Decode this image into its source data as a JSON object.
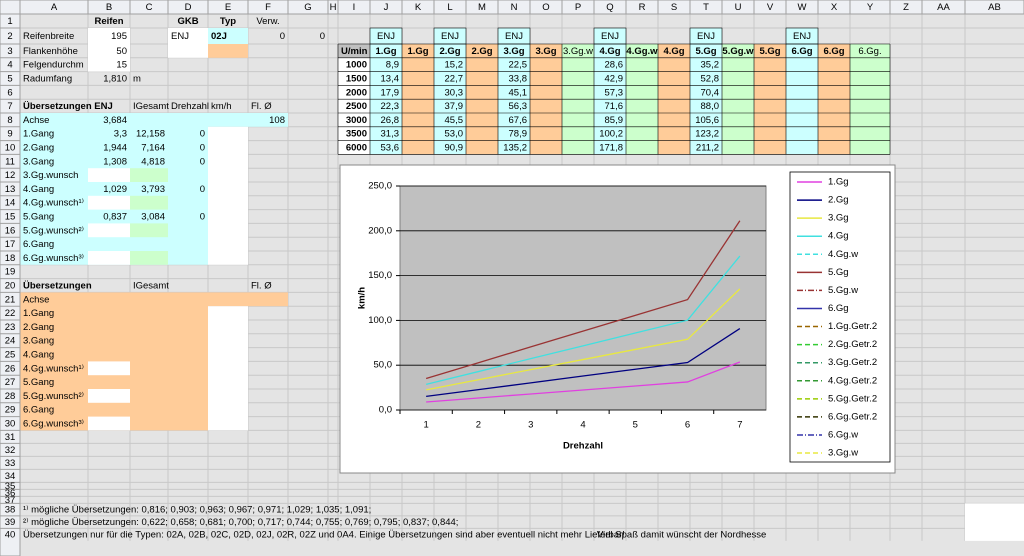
{
  "columns": [
    "A",
    "B",
    "C",
    "D",
    "E",
    "F",
    "G",
    "H",
    "I",
    "J",
    "K",
    "L",
    "M",
    "N",
    "O",
    "P",
    "Q",
    "R",
    "S",
    "T",
    "U",
    "V",
    "W",
    "X",
    "Y",
    "Z",
    "AA",
    "AB"
  ],
  "row_numbers": [
    1,
    2,
    3,
    4,
    5,
    6,
    7,
    8,
    9,
    10,
    11,
    12,
    13,
    14,
    15,
    16,
    17,
    18,
    19,
    20,
    21,
    22,
    23,
    24,
    25,
    26,
    27,
    28,
    29,
    30,
    31,
    32,
    33,
    34,
    35,
    36,
    37,
    38,
    39,
    40
  ],
  "sheet": {
    "1": {
      "B": "Reifen",
      "D": "GKB",
      "E": "Typ",
      "F": "Verw."
    },
    "2": {
      "A": "Reifenbreite",
      "B": "195",
      "D": "ENJ",
      "E": "02J",
      "F": "0",
      "G": "0",
      "J": "ENJ",
      "L": "ENJ",
      "N": "ENJ",
      "Q": "ENJ",
      "T": "ENJ",
      "W": "ENJ"
    },
    "3": {
      "A": "Flankenhöhe",
      "B": "50",
      "I": "U/min",
      "J": "1.Gg",
      "K": "1.Gg",
      "L": "2.Gg",
      "M": "2.Gg",
      "N": "3.Gg",
      "O": "3.Gg",
      "P": "3.Gg.w",
      "Q": "4.Gg",
      "R": "4.Gg.w",
      "S": "4.Gg",
      "T": "5.Gg",
      "U": "5.Gg.w",
      "V": "5.Gg",
      "W": "6.Gg",
      "X": "6.Gg",
      "Y": "6.Gg."
    },
    "4": {
      "A": "Felgendurchm",
      "B": "15",
      "I": "1000",
      "J": "8,9",
      "L": "15,2",
      "N": "22,5",
      "Q": "28,6",
      "T": "35,2"
    },
    "5": {
      "A": "Radumfang",
      "B": "1,810",
      "C": "m",
      "I": "1500",
      "J": "13,4",
      "L": "22,7",
      "N": "33,8",
      "Q": "42,9",
      "T": "52,8"
    },
    "6": {
      "I": "2000",
      "J": "17,9",
      "L": "30,3",
      "N": "45,1",
      "Q": "57,3",
      "T": "70,4"
    },
    "7": {
      "A": "Übersetzungen ENJ",
      "C": "IGesamt",
      "D": "Drehzahl",
      "E": "km/h",
      "F": "Fl. Ø",
      "I": "2500",
      "J": "22,3",
      "L": "37,9",
      "N": "56,3",
      "Q": "71,6",
      "T": "88,0"
    },
    "8": {
      "A": "Achse",
      "B": "3,684",
      "F": "108",
      "I": "3000",
      "J": "26,8",
      "L": "45,5",
      "N": "67,6",
      "Q": "85,9",
      "T": "105,6"
    },
    "9": {
      "A": "1.Gang",
      "B": "3,3",
      "C": "12,158",
      "D": "0",
      "I": "3500",
      "J": "31,3",
      "L": "53,0",
      "N": "78,9",
      "Q": "100,2",
      "T": "123,2"
    },
    "10": {
      "A": "2.Gang",
      "B": "1,944",
      "C": "7,164",
      "D": "0",
      "I": "6000",
      "J": "53,6",
      "L": "90,9",
      "N": "135,2",
      "Q": "171,8",
      "T": "211,2"
    },
    "11": {
      "A": "3.Gang",
      "B": "1,308",
      "C": "4,818",
      "D": "0"
    },
    "12": {
      "A": "3.Gg.wunsch"
    },
    "13": {
      "A": "4.Gang",
      "B": "1,029",
      "C": "3,793",
      "D": "0"
    },
    "14": {
      "A": "4.Gg.wunsch¹⁾"
    },
    "15": {
      "A": "5.Gang",
      "B": "0,837",
      "C": "3,084",
      "D": "0"
    },
    "16": {
      "A": "5.Gg.wunsch²⁾"
    },
    "17": {
      "A": "6.Gang"
    },
    "18": {
      "A": "6.Gg.wunsch³⁾"
    },
    "20": {
      "A": "Übersetzungen",
      "C": "IGesamt",
      "F": "Fl. Ø"
    },
    "21": {
      "A": "Achse"
    },
    "22": {
      "A": "1.Gang"
    },
    "23": {
      "A": "2.Gang"
    },
    "24": {
      "A": "3.Gang"
    },
    "25": {
      "A": "4.Gang"
    },
    "26": {
      "A": "4.Gg.wunsch¹⁾"
    },
    "27": {
      "A": "5.Gang"
    },
    "28": {
      "A": "5.Gg.wunsch²⁾"
    },
    "29": {
      "A": "6.Gang"
    },
    "30": {
      "A": "6.Gg.wunsch³⁾"
    },
    "38": {
      "A": "¹⁾ mögliche Übersetzungen: 0,816; 0,903; 0,963; 0,967; 0,971; 1,029; 1,035; 1,091;"
    },
    "39": {
      "A": "²⁾ mögliche Übersetzungen: 0,622; 0,658; 0,681; 0,700; 0,717; 0,744; 0,755; 0,769; 0,795; 0,837; 0,844;"
    },
    "40": {
      "A": "Übersetzungen nur für die Typen: 02A, 02B, 02C, 02D, 02J, 02R, 02Z und 0A4. Einige Übersetzungen sind aber eventuell nicht mehr Lieferbar!",
      "Q": "Viel Spaß damit wünscht der Nordhesse"
    }
  },
  "chart_data": {
    "type": "line",
    "xlabel": "Drehzahl",
    "ylabel": "km/h",
    "categories": [
      1,
      2,
      3,
      4,
      5,
      6,
      7
    ],
    "ylim": [
      0,
      250
    ],
    "yticks": [
      {
        "value": 0,
        "label": "0,0"
      },
      {
        "value": 50,
        "label": "50,0"
      },
      {
        "value": 100,
        "label": "100,0"
      },
      {
        "value": 150,
        "label": "150,0"
      },
      {
        "value": 200,
        "label": "200,0"
      },
      {
        "value": 250,
        "label": "250,0"
      }
    ],
    "grid": true,
    "legend": "right",
    "series": [
      {
        "name": "1.Gg",
        "color": "#e040e0",
        "values": [
          8.9,
          13.4,
          17.9,
          22.3,
          26.8,
          31.3,
          53.6
        ]
      },
      {
        "name": "2.Gg",
        "color": "#000080",
        "values": [
          15.2,
          22.7,
          30.3,
          37.9,
          45.5,
          53.0,
          90.9
        ]
      },
      {
        "name": "3.Gg",
        "color": "#e8e840",
        "values": [
          22.5,
          33.8,
          45.1,
          56.3,
          67.6,
          78.9,
          135.2
        ]
      },
      {
        "name": "4.Gg",
        "color": "#40e0e0",
        "values": [
          28.6,
          42.9,
          57.3,
          71.6,
          85.9,
          100.2,
          171.8
        ]
      },
      {
        "name": "4.Gg.w",
        "color": "#40e0e0",
        "dash": "dash",
        "values": [
          null,
          null,
          null,
          null,
          null,
          null,
          null
        ]
      },
      {
        "name": "5.Gg",
        "color": "#993333",
        "values": [
          35.2,
          52.8,
          70.4,
          88.0,
          105.6,
          123.2,
          211.2
        ]
      },
      {
        "name": "5.Gg.w",
        "color": "#993333",
        "dash": "dashdot",
        "values": [
          null,
          null,
          null,
          null,
          null,
          null,
          null
        ]
      },
      {
        "name": "6.Gg",
        "color": "#3333aa",
        "values": [
          null,
          null,
          null,
          null,
          null,
          null,
          null
        ]
      },
      {
        "name": "1.Gg.Getr.2",
        "color": "#996600",
        "dash": "dash",
        "values": [
          null,
          null,
          null,
          null,
          null,
          null,
          null
        ]
      },
      {
        "name": "2.Gg.Getr.2",
        "color": "#33cc33",
        "dash": "dash",
        "values": [
          null,
          null,
          null,
          null,
          null,
          null,
          null
        ]
      },
      {
        "name": "3.Gg.Getr.2",
        "color": "#339966",
        "dash": "dash",
        "values": [
          null,
          null,
          null,
          null,
          null,
          null,
          null
        ]
      },
      {
        "name": "4.Gg.Getr.2",
        "color": "#339933",
        "dash": "dash",
        "values": [
          null,
          null,
          null,
          null,
          null,
          null,
          null
        ]
      },
      {
        "name": "5.Gg.Getr.2",
        "color": "#99cc00",
        "dash": "dash",
        "values": [
          null,
          null,
          null,
          null,
          null,
          null,
          null
        ]
      },
      {
        "name": "6.Gg.Getr.2",
        "color": "#333300",
        "dash": "dash",
        "values": [
          null,
          null,
          null,
          null,
          null,
          null,
          null
        ]
      },
      {
        "name": "6.Gg.w",
        "color": "#3333aa",
        "dash": "dashdot",
        "values": [
          null,
          null,
          null,
          null,
          null,
          null,
          null
        ]
      },
      {
        "name": "3.Gg.w",
        "color": "#e8e840",
        "dash": "dash",
        "values": [
          null,
          null,
          null,
          null,
          null,
          null,
          null
        ]
      }
    ]
  }
}
